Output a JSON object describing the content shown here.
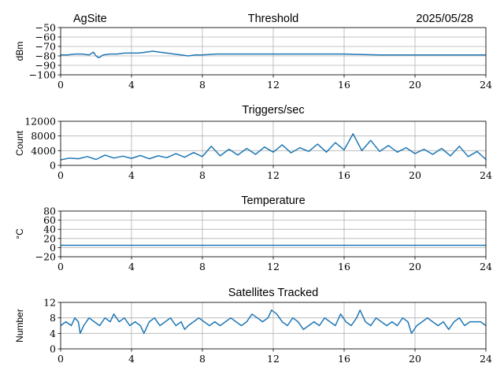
{
  "header": {
    "site": "AgSite",
    "date": "2025/05/28"
  },
  "colors": {
    "series": "#1f77b4",
    "grid": "#b0b0b0"
  },
  "chart_data": [
    {
      "type": "line",
      "title": "Threshold",
      "ylabel": "dBm",
      "xlim": [
        0,
        24
      ],
      "ylim": [
        -100,
        -50
      ],
      "xticks": [
        0,
        4,
        8,
        12,
        16,
        20,
        24
      ],
      "yticks": [
        -100,
        -90,
        -80,
        -70,
        -60,
        -50
      ],
      "ytick_labels": [
        "−100",
        "−90",
        "−80",
        "−70",
        "−60",
        "−50"
      ],
      "grid": true,
      "series": [
        {
          "x": [
            0,
            0.4,
            0.8,
            1.2,
            1.6,
            1.85,
            2.0,
            2.15,
            2.4,
            2.8,
            3.2,
            3.6,
            4.0,
            4.4,
            4.8,
            5.2,
            5.6,
            6.0,
            6.4,
            6.8,
            7.2,
            7.6,
            8.0,
            8.8,
            9.6,
            10.4,
            11.2,
            12.0,
            12.8,
            13.6,
            14.4,
            15.2,
            16.0,
            17.0,
            18.0,
            19.0,
            20.0,
            21.0,
            22.0,
            23.0,
            24.0
          ],
          "values": [
            -79,
            -79,
            -78,
            -78,
            -79,
            -76,
            -80,
            -82,
            -79,
            -78,
            -78,
            -77,
            -77,
            -77,
            -76,
            -75,
            -76,
            -77,
            -78,
            -79,
            -80,
            -79,
            -79,
            -78,
            -78,
            -78,
            -78,
            -78,
            -78,
            -78,
            -78,
            -78,
            -78,
            -78.5,
            -79,
            -79,
            -79,
            -79,
            -79,
            -79,
            -79
          ]
        }
      ]
    },
    {
      "type": "line",
      "title": "Triggers/sec",
      "ylabel": "Count",
      "xlim": [
        0,
        24
      ],
      "ylim": [
        0,
        12000
      ],
      "xticks": [
        0,
        4,
        8,
        12,
        16,
        20,
        24
      ],
      "yticks": [
        0,
        4000,
        8000,
        12000
      ],
      "ytick_labels": [
        "0",
        "4000",
        "8000",
        "12000"
      ],
      "grid": true,
      "series": [
        {
          "x": [
            0,
            0.5,
            1,
            1.5,
            2,
            2.5,
            3,
            3.5,
            4,
            4.5,
            5,
            5.5,
            6,
            6.5,
            7,
            7.5,
            8,
            8.5,
            9,
            9.5,
            10,
            10.5,
            11,
            11.5,
            12,
            12.5,
            13,
            13.5,
            14,
            14.5,
            15,
            15.5,
            16,
            16.5,
            17,
            17.5,
            18,
            18.5,
            19,
            19.5,
            20,
            20.5,
            21,
            21.5,
            22,
            22.5,
            23,
            23.5,
            24
          ],
          "values": [
            1500,
            2000,
            1800,
            2400,
            1600,
            2800,
            2000,
            2500,
            1900,
            2700,
            1800,
            2600,
            2100,
            3200,
            2200,
            3500,
            2400,
            5200,
            2600,
            4400,
            2800,
            4600,
            3000,
            5000,
            3600,
            5600,
            3400,
            4800,
            3800,
            5800,
            3600,
            6200,
            4200,
            8600,
            4000,
            6800,
            3800,
            5400,
            3600,
            4800,
            3200,
            4400,
            3000,
            4600,
            2600,
            5200,
            2400,
            3800,
            1600
          ]
        }
      ]
    },
    {
      "type": "line",
      "title": "Temperature",
      "ylabel": "°C",
      "xlim": [
        0,
        24
      ],
      "ylim": [
        -20,
        80
      ],
      "xticks": [
        0,
        4,
        8,
        12,
        16,
        20,
        24
      ],
      "yticks": [
        -20,
        0,
        20,
        40,
        60,
        80
      ],
      "ytick_labels": [
        "−20",
        "0",
        "20",
        "40",
        "60",
        "80"
      ],
      "grid": true,
      "series": [
        {
          "x": [
            0,
            24
          ],
          "values": [
            5,
            5
          ]
        }
      ]
    },
    {
      "type": "line",
      "title": "Satellites Tracked",
      "ylabel": "Number",
      "xlim": [
        0,
        24
      ],
      "ylim": [
        0,
        12
      ],
      "xticks": [
        0,
        4,
        8,
        12,
        16,
        20,
        24
      ],
      "yticks": [
        0,
        4,
        8,
        12
      ],
      "ytick_labels": [
        "0",
        "4",
        "8",
        "12"
      ],
      "grid": true,
      "series": [
        {
          "x": [
            0,
            0.3,
            0.6,
            0.8,
            1.0,
            1.1,
            1.3,
            1.6,
            1.9,
            2.2,
            2.5,
            2.8,
            3.0,
            3.3,
            3.6,
            3.9,
            4.2,
            4.5,
            4.7,
            4.8,
            5.0,
            5.3,
            5.6,
            5.9,
            6.2,
            6.5,
            6.8,
            7.0,
            7.2,
            7.5,
            7.8,
            8.1,
            8.4,
            8.7,
            9.0,
            9.3,
            9.6,
            9.9,
            10.2,
            10.5,
            10.8,
            11.1,
            11.4,
            11.7,
            11.9,
            12.2,
            12.5,
            12.8,
            13.1,
            13.4,
            13.7,
            14.0,
            14.3,
            14.6,
            14.9,
            15.2,
            15.5,
            15.8,
            16.1,
            16.4,
            16.7,
            16.9,
            17.2,
            17.5,
            17.8,
            18.1,
            18.4,
            18.7,
            19.0,
            19.3,
            19.6,
            19.8,
            20.1,
            20.4,
            20.7,
            21.0,
            21.3,
            21.6,
            21.9,
            22.2,
            22.5,
            22.8,
            23.1,
            23.4,
            23.7,
            24.0
          ],
          "values": [
            6,
            7,
            6,
            8,
            7,
            4,
            6,
            8,
            7,
            6,
            8,
            7,
            9,
            7,
            8,
            6,
            7,
            6,
            4,
            5,
            7,
            8,
            6,
            7,
            8,
            6,
            7,
            5,
            6,
            7,
            8,
            7,
            6,
            7,
            6,
            7,
            8,
            7,
            6,
            7,
            9,
            8,
            7,
            8,
            10,
            9,
            7,
            6,
            8,
            7,
            5,
            6,
            7,
            6,
            8,
            7,
            6,
            9,
            7,
            6,
            8,
            10,
            7,
            6,
            8,
            7,
            6,
            7,
            6,
            8,
            7,
            4,
            6,
            7,
            8,
            7,
            6,
            7,
            5,
            7,
            8,
            6,
            7,
            7,
            7,
            6
          ]
        }
      ]
    }
  ]
}
